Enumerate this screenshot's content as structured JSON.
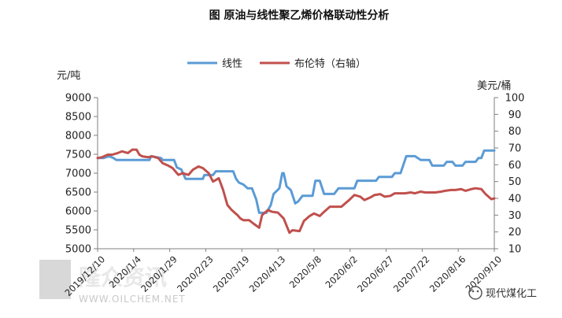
{
  "chart_data": {
    "type": "line",
    "title": "图  原油与线性聚乙烯价格联动性分析",
    "y_left_label": "元/吨",
    "y_right_label": "美元/桶",
    "y_left_range": [
      5000,
      9000
    ],
    "y_left_ticks": [
      "5000",
      "5500",
      "6000",
      "6500",
      "7000",
      "7500",
      "8000",
      "8500",
      "9000"
    ],
    "y_right_range": [
      10,
      100
    ],
    "y_right_ticks": [
      "10",
      "20",
      "30",
      "40",
      "50",
      "60",
      "70",
      "80",
      "90",
      "100"
    ],
    "x_range": [
      "2019-12-10",
      "2020-09-10"
    ],
    "x_tick_labels": [
      "2019/12/10",
      "2020/1/4",
      "2020/1/29",
      "2020/2/23",
      "2020/3/19",
      "2020/4/13",
      "2020/5/8",
      "2020/6/2",
      "2020/6/27",
      "2020/7/22",
      "2020/8/16",
      "2020/9/10"
    ],
    "x_tick_dates": [
      "2019-12-10",
      "2020-01-04",
      "2020-01-29",
      "2020-02-23",
      "2020-03-19",
      "2020-04-13",
      "2020-05-08",
      "2020-06-02",
      "2020-06-27",
      "2020-07-22",
      "2020-08-16",
      "2020-09-10"
    ],
    "legend_position": "top-center",
    "grid": false,
    "series": [
      {
        "name": "线性",
        "axis": "left",
        "color": "#5b9bd5",
        "points": [
          [
            "2019-12-10",
            7400
          ],
          [
            "2019-12-14",
            7400
          ],
          [
            "2019-12-18",
            7450
          ],
          [
            "2019-12-21",
            7400
          ],
          [
            "2019-12-23",
            7350
          ],
          [
            "2020-01-06",
            7350
          ],
          [
            "2020-01-15",
            7350
          ],
          [
            "2020-01-16",
            7450
          ],
          [
            "2020-01-23",
            7400
          ],
          [
            "2020-01-24",
            7350
          ],
          [
            "2020-02-01",
            7350
          ],
          [
            "2020-02-03",
            7150
          ],
          [
            "2020-02-06",
            7100
          ],
          [
            "2020-02-09",
            6850
          ],
          [
            "2020-02-21",
            6850
          ],
          [
            "2020-02-22",
            6950
          ],
          [
            "2020-02-28",
            6950
          ],
          [
            "2020-03-01",
            7050
          ],
          [
            "2020-03-13",
            7050
          ],
          [
            "2020-03-15",
            6850
          ],
          [
            "2020-03-17",
            6750
          ],
          [
            "2020-03-20",
            6700
          ],
          [
            "2020-03-23",
            6600
          ],
          [
            "2020-03-26",
            6600
          ],
          [
            "2020-03-29",
            6300
          ],
          [
            "2020-03-31",
            5950
          ],
          [
            "2020-04-05",
            5950
          ],
          [
            "2020-04-08",
            6150
          ],
          [
            "2020-04-10",
            6450
          ],
          [
            "2020-04-14",
            6600
          ],
          [
            "2020-04-16",
            7000
          ],
          [
            "2020-04-17",
            7000
          ],
          [
            "2020-04-19",
            6650
          ],
          [
            "2020-04-22",
            6550
          ],
          [
            "2020-04-25",
            6200
          ],
          [
            "2020-04-27",
            6250
          ],
          [
            "2020-04-30",
            6400
          ],
          [
            "2020-05-07",
            6400
          ],
          [
            "2020-05-09",
            6800
          ],
          [
            "2020-05-12",
            6800
          ],
          [
            "2020-05-15",
            6450
          ],
          [
            "2020-05-22",
            6450
          ],
          [
            "2020-05-25",
            6600
          ],
          [
            "2020-06-05",
            6600
          ],
          [
            "2020-06-07",
            6800
          ],
          [
            "2020-06-20",
            6800
          ],
          [
            "2020-06-22",
            6900
          ],
          [
            "2020-07-01",
            6900
          ],
          [
            "2020-07-03",
            7000
          ],
          [
            "2020-07-07",
            7000
          ],
          [
            "2020-07-11",
            7450
          ],
          [
            "2020-07-17",
            7450
          ],
          [
            "2020-07-21",
            7350
          ],
          [
            "2020-07-27",
            7350
          ],
          [
            "2020-07-29",
            7200
          ],
          [
            "2020-08-06",
            7200
          ],
          [
            "2020-08-08",
            7300
          ],
          [
            "2020-08-12",
            7300
          ],
          [
            "2020-08-14",
            7200
          ],
          [
            "2020-08-19",
            7200
          ],
          [
            "2020-08-21",
            7300
          ],
          [
            "2020-08-28",
            7300
          ],
          [
            "2020-08-30",
            7400
          ],
          [
            "2020-09-01",
            7400
          ],
          [
            "2020-09-03",
            7600
          ],
          [
            "2020-09-10",
            7600
          ]
        ]
      },
      {
        "name": "布伦特（右轴）",
        "axis": "right",
        "color": "#c0504d",
        "points": [
          [
            "2019-12-10",
            64
          ],
          [
            "2019-12-13",
            64.5
          ],
          [
            "2019-12-17",
            66
          ],
          [
            "2019-12-20",
            66
          ],
          [
            "2019-12-24",
            67
          ],
          [
            "2019-12-27",
            68
          ],
          [
            "2019-12-31",
            67
          ],
          [
            "2020-01-03",
            69
          ],
          [
            "2020-01-06",
            69
          ],
          [
            "2020-01-08",
            66
          ],
          [
            "2020-01-10",
            65
          ],
          [
            "2020-01-14",
            64.5
          ],
          [
            "2020-01-17",
            65
          ],
          [
            "2020-01-21",
            64
          ],
          [
            "2020-01-24",
            61
          ],
          [
            "2020-01-28",
            59.5
          ],
          [
            "2020-01-31",
            58
          ],
          [
            "2020-02-04",
            54
          ],
          [
            "2020-02-07",
            55
          ],
          [
            "2020-02-11",
            54
          ],
          [
            "2020-02-14",
            57
          ],
          [
            "2020-02-18",
            59
          ],
          [
            "2020-02-21",
            58
          ],
          [
            "2020-02-25",
            55
          ],
          [
            "2020-02-28",
            50
          ],
          [
            "2020-03-03",
            52
          ],
          [
            "2020-03-06",
            45
          ],
          [
            "2020-03-09",
            36
          ],
          [
            "2020-03-12",
            33
          ],
          [
            "2020-03-16",
            30
          ],
          [
            "2020-03-18",
            28
          ],
          [
            "2020-03-20",
            27
          ],
          [
            "2020-03-24",
            27
          ],
          [
            "2020-03-27",
            25
          ],
          [
            "2020-03-31",
            22.5
          ],
          [
            "2020-04-02",
            30
          ],
          [
            "2020-04-06",
            33
          ],
          [
            "2020-04-09",
            32
          ],
          [
            "2020-04-13",
            31.5
          ],
          [
            "2020-04-17",
            28
          ],
          [
            "2020-04-21",
            19.5
          ],
          [
            "2020-04-23",
            21
          ],
          [
            "2020-04-28",
            20.5
          ],
          [
            "2020-05-01",
            26.5
          ],
          [
            "2020-05-05",
            29.5
          ],
          [
            "2020-05-08",
            31
          ],
          [
            "2020-05-12",
            29.5
          ],
          [
            "2020-05-15",
            32
          ],
          [
            "2020-05-19",
            35
          ],
          [
            "2020-05-22",
            35
          ],
          [
            "2020-05-27",
            35
          ],
          [
            "2020-06-02",
            39.5
          ],
          [
            "2020-06-05",
            42
          ],
          [
            "2020-06-09",
            41
          ],
          [
            "2020-06-12",
            39
          ],
          [
            "2020-06-16",
            40.5
          ],
          [
            "2020-06-19",
            42
          ],
          [
            "2020-06-23",
            42.5
          ],
          [
            "2020-06-26",
            41
          ],
          [
            "2020-06-30",
            41.5
          ],
          [
            "2020-07-03",
            43
          ],
          [
            "2020-07-07",
            43
          ],
          [
            "2020-07-10",
            43
          ],
          [
            "2020-07-14",
            43.5
          ],
          [
            "2020-07-17",
            43
          ],
          [
            "2020-07-21",
            44
          ],
          [
            "2020-07-24",
            43.5
          ],
          [
            "2020-07-28",
            43.5
          ],
          [
            "2020-07-31",
            43.5
          ],
          [
            "2020-08-04",
            44
          ],
          [
            "2020-08-07",
            44.5
          ],
          [
            "2020-08-11",
            45
          ],
          [
            "2020-08-14",
            45
          ],
          [
            "2020-08-18",
            45.5
          ],
          [
            "2020-08-21",
            44.5
          ],
          [
            "2020-08-25",
            45.5
          ],
          [
            "2020-08-28",
            46
          ],
          [
            "2020-09-01",
            45.5
          ],
          [
            "2020-09-04",
            42.5
          ],
          [
            "2020-09-08",
            39.5
          ],
          [
            "2020-09-10",
            40
          ]
        ]
      }
    ]
  },
  "watermark": {
    "brand_glyph": "隆众资讯",
    "url": "WWW.OILCHEM.NET",
    "wechat_label": "现代煤化工",
    "wechat_icon": "wechat-icon"
  }
}
